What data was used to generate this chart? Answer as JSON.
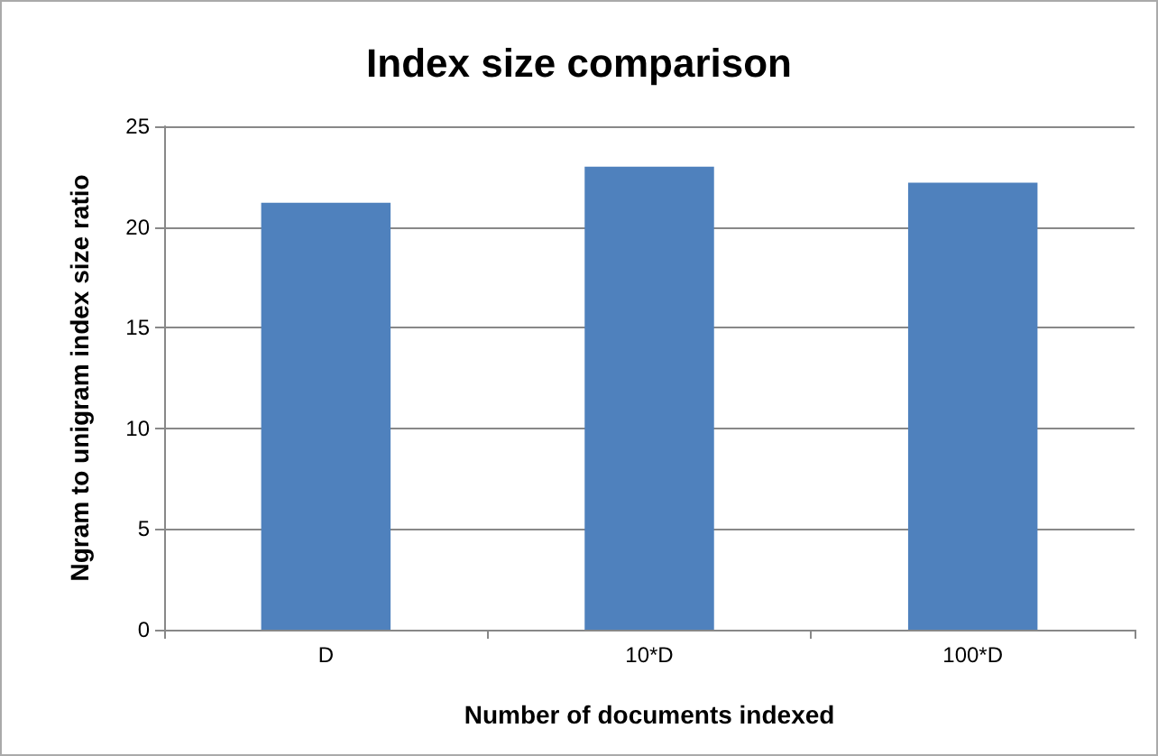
{
  "chart_data": {
    "type": "bar",
    "title": "Index size comparison",
    "xlabel": "Number of documents indexed",
    "ylabel": "Ngram to unigram index size ratio",
    "categories": [
      "D",
      "10*D",
      "100*D"
    ],
    "values": [
      21.2,
      23.0,
      22.2
    ],
    "color": "#4f81bd",
    "ylim": [
      0,
      25
    ],
    "yticks": [
      0,
      5,
      10,
      15,
      20,
      25
    ],
    "grid": "y"
  }
}
